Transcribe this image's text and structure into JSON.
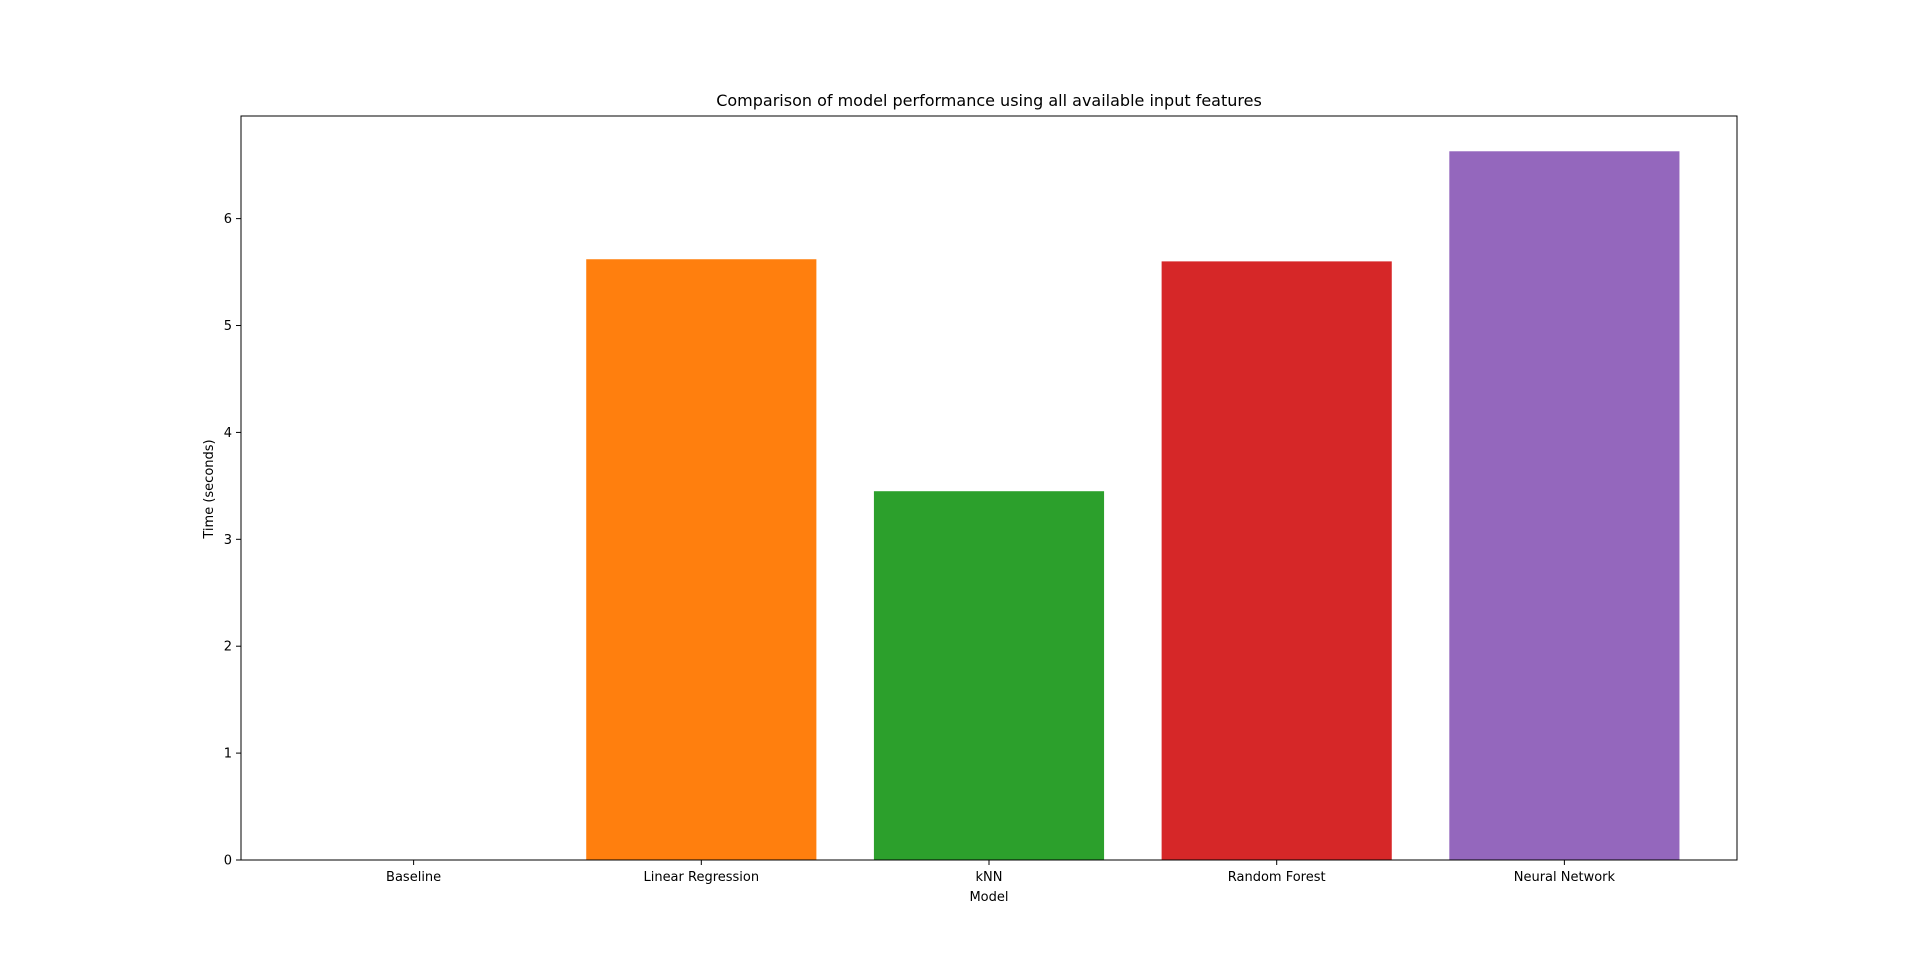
{
  "chart_data": {
    "type": "bar",
    "title": "Comparison of model performance using all available input features",
    "xlabel": "Model",
    "ylabel": "Time (seconds)",
    "categories": [
      "Baseline",
      "Linear Regression",
      "kNN",
      "Random Forest",
      "Neural Network"
    ],
    "values": [
      0.0,
      5.62,
      3.45,
      5.6,
      6.63
    ],
    "colors": [
      "#1f77b4",
      "#ff7f0e",
      "#2ca02c",
      "#d62728",
      "#9467bd"
    ],
    "yticks": [
      0,
      1,
      2,
      3,
      4,
      5,
      6
    ],
    "ylim": [
      0,
      6.96
    ],
    "grid": false,
    "legend": "none"
  }
}
